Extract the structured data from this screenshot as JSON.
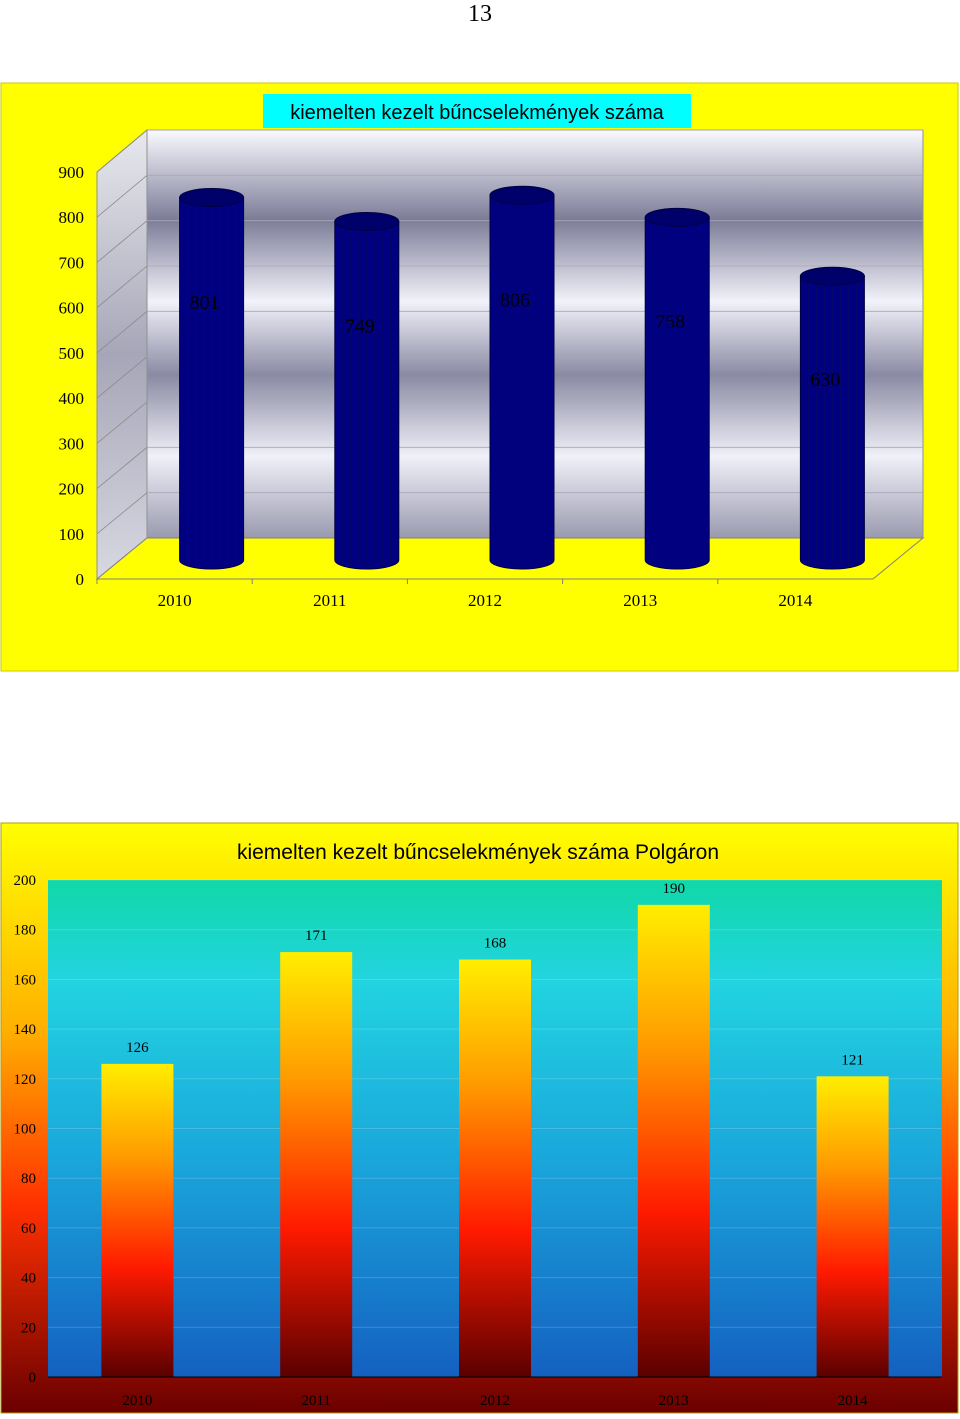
{
  "page": {
    "number": "13"
  },
  "chart_data": [
    {
      "type": "bar",
      "title": "kiemelten kezelt bűncselekmények száma",
      "categories": [
        "2010",
        "2011",
        "2012",
        "2013",
        "2014"
      ],
      "values": [
        801,
        749,
        806,
        758,
        630
      ],
      "data_labels": [
        "801",
        "749",
        "806",
        "758",
        "630"
      ],
      "yticks": [
        "0",
        "100",
        "200",
        "300",
        "400",
        "500",
        "600",
        "700",
        "800",
        "900"
      ],
      "ylim": [
        0,
        900
      ],
      "xlabel": "",
      "ylabel": "",
      "style": "3d-cylinder",
      "grid": true,
      "legend": "none",
      "colors": {
        "background": "#ffff00",
        "bar": "#000080",
        "bar_top": "#00006a",
        "title_bg": "#00ffff",
        "wall_light": "#f5f5ff",
        "wall_dark": "#6b6b8a",
        "floor": "#ffff00"
      }
    },
    {
      "type": "bar",
      "title": "kiemelten kezelt bűncselekmények száma Polgáron",
      "categories": [
        "2010",
        "2011",
        "2012",
        "2013",
        "2014"
      ],
      "values": [
        126,
        171,
        168,
        190,
        121
      ],
      "data_labels": [
        "126",
        "171",
        "168",
        "190",
        "121"
      ],
      "yticks": [
        "0",
        "20",
        "40",
        "60",
        "80",
        "100",
        "120",
        "140",
        "160",
        "180",
        "200"
      ],
      "ylim": [
        0,
        200
      ],
      "xlabel": "",
      "ylabel": "",
      "style": "gradient-bars",
      "grid": true,
      "legend": "none",
      "colors": {
        "background_top": "#ffff00",
        "background_bottom": "#7a0000",
        "plot_top": "#10d9a8",
        "plot_bottom": "#1565c0",
        "bar_top": "#ffff00",
        "bar_mid": "#ff8c00",
        "bar_low": "#ff1a00",
        "bar_bottom": "#5a0000"
      }
    }
  ]
}
